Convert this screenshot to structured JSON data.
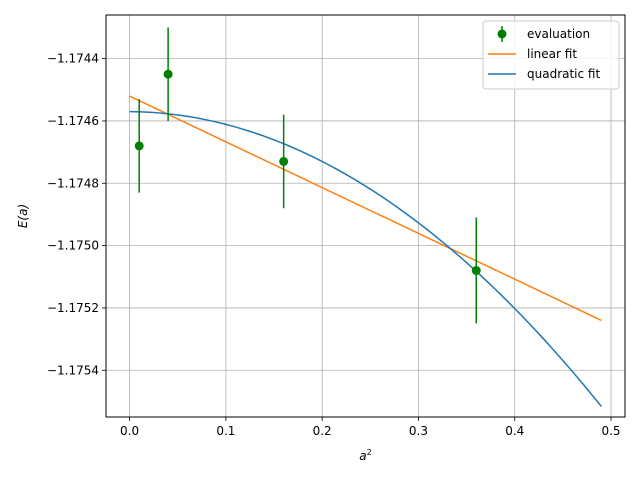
{
  "chart_data": {
    "type": "scatter",
    "xlabel": "a²",
    "ylabel": "E(a)",
    "xlim": [
      -0.0245,
      0.5145
    ],
    "ylim": [
      -1.17555,
      -1.17426
    ],
    "xticks": [
      0.0,
      0.1,
      0.2,
      0.3,
      0.4,
      0.5
    ],
    "xtick_labels": [
      "0.0",
      "0.1",
      "0.2",
      "0.3",
      "0.4",
      "0.5"
    ],
    "yticks": [
      -1.1754,
      -1.1752,
      -1.175,
      -1.1748,
      -1.1746,
      -1.1744
    ],
    "ytick_labels": [
      "−1.1754",
      "−1.1752",
      "−1.1750",
      "−1.1748",
      "−1.1746",
      "−1.1744"
    ],
    "grid": true,
    "legend_position": "top-right",
    "series": [
      {
        "name": "evaluation",
        "kind": "errorbar",
        "color": "#008000",
        "x": [
          0.01,
          0.04,
          0.16,
          0.36
        ],
        "y": [
          -1.17468,
          -1.17445,
          -1.17473,
          -1.17508
        ],
        "yerr": [
          0.00015,
          0.00015,
          0.00015,
          0.00017
        ]
      },
      {
        "name": "linear fit",
        "kind": "line",
        "color": "#ff7f0e",
        "x": [
          0.0,
          0.49
        ],
        "y": [
          -1.17452,
          -1.17524
        ]
      },
      {
        "name": "quadratic fit",
        "kind": "curve",
        "color": "#1f77b4",
        "x_range": [
          0.0,
          0.49
        ],
        "coefficients": [
          -1.17457,
          -2e-05,
          -0.0039
        ]
      }
    ]
  }
}
